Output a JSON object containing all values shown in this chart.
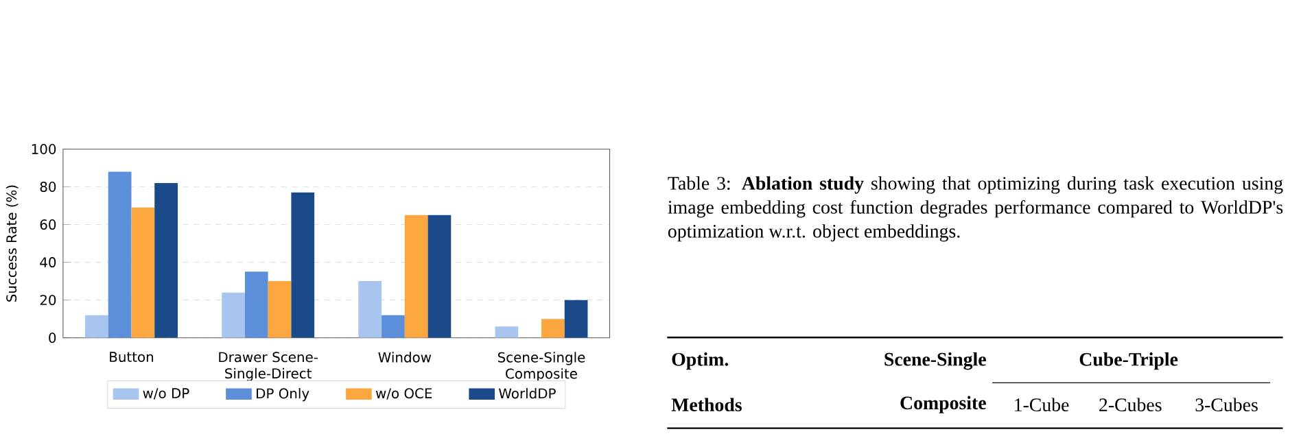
{
  "chart_data": {
    "type": "bar",
    "ylabel": "Success Rate (%)",
    "categories": [
      "Button",
      "Drawer Scene-Single-Direct",
      "Window",
      "Scene-Single Composite"
    ],
    "series": [
      {
        "name": "w/o DP",
        "color": "#a8c5ef",
        "values": [
          12,
          24,
          30,
          6
        ]
      },
      {
        "name": "DP Only",
        "color": "#5b8fd9",
        "values": [
          88,
          35,
          12,
          0
        ]
      },
      {
        "name": "w/o OCE",
        "color": "#fca63f",
        "values": [
          69,
          30,
          65,
          10
        ]
      },
      {
        "name": "WorldDP",
        "color": "#1a4a8a",
        "values": [
          82,
          77,
          65,
          20
        ]
      }
    ],
    "ylim": [
      0,
      100
    ],
    "yticks": [
      0,
      20,
      40,
      60,
      80,
      100
    ],
    "grid": "y",
    "legend": "bottom",
    "annotations": [
      "Table 3: **Ablation study** showing that optimizing during task execution using image embedding cost function degrades performance compared to WorldDP's optimization w.r.t. object embeddings.",
      "Optim.",
      "Methods",
      "Scene-Single",
      "Composite",
      "Cube-Triple",
      "1-Cube",
      "2-Cubes",
      "3-Cubes"
    ]
  }
}
